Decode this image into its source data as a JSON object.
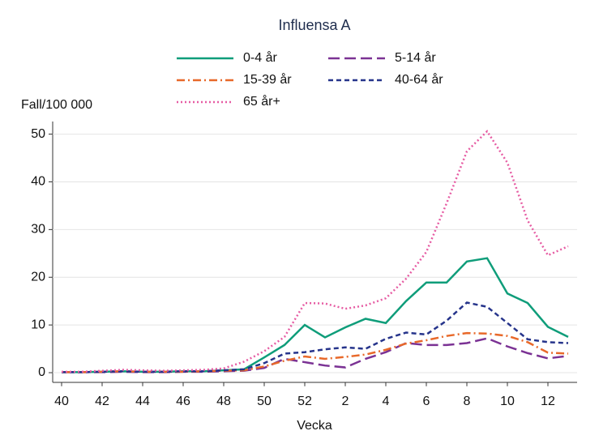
{
  "chart_data": {
    "type": "line",
    "title": "Influensa A",
    "y_label": "Fall/100 000",
    "x_label": "Vecka",
    "categories": [
      "40",
      null,
      "42",
      null,
      "44",
      null,
      "46",
      null,
      "48",
      null,
      "50",
      null,
      "52",
      null,
      "2",
      null,
      "4",
      null,
      "6",
      null,
      "8",
      null,
      "10",
      null,
      "12",
      null
    ],
    "ylim": [
      -2,
      52
    ],
    "yticks": [
      0,
      10,
      20,
      30,
      40,
      50
    ],
    "grid": true,
    "series": [
      {
        "name": "0-4 år",
        "color": "#0f9d7a",
        "dash": "solid",
        "values": [
          0.1,
          0.1,
          0.2,
          0.3,
          0.2,
          0.2,
          0.3,
          0.3,
          0.5,
          0.7,
          3.2,
          5.8,
          10.0,
          7.4,
          9.5,
          11.3,
          10.4,
          15.0,
          18.9,
          18.9,
          23.3,
          24.0,
          16.6,
          14.6,
          9.6,
          7.5
        ]
      },
      {
        "name": "5-14 år",
        "color": "#7b3294",
        "dash": "longdash",
        "values": [
          0.1,
          0.1,
          0.1,
          0.2,
          0.1,
          0.1,
          0.2,
          0.2,
          0.3,
          0.4,
          1.0,
          2.9,
          2.2,
          1.5,
          1.1,
          2.9,
          4.3,
          6.2,
          5.8,
          5.8,
          6.2,
          7.2,
          5.5,
          4.1,
          3.0,
          3.5
        ]
      },
      {
        "name": "15-39 år",
        "color": "#e8692a",
        "dash": "dashdot",
        "values": [
          0.1,
          0.1,
          0.2,
          0.3,
          0.2,
          0.2,
          0.2,
          0.3,
          0.4,
          0.5,
          1.3,
          2.5,
          3.4,
          2.9,
          3.3,
          3.8,
          4.8,
          6.1,
          6.8,
          7.7,
          8.3,
          8.2,
          7.7,
          6.4,
          4.2,
          4.0
        ]
      },
      {
        "name": "40-64 år",
        "color": "#26348b",
        "dash": "dash",
        "values": [
          0.1,
          0.1,
          0.2,
          0.3,
          0.2,
          0.2,
          0.3,
          0.3,
          0.5,
          0.7,
          2.0,
          4.0,
          4.3,
          4.9,
          5.3,
          5.0,
          7.1,
          8.4,
          8.0,
          10.9,
          14.7,
          13.8,
          10.4,
          7.0,
          6.4,
          6.2
        ]
      },
      {
        "name": "65 år+",
        "color": "#e65ca3",
        "dash": "dot",
        "values": [
          0.2,
          0.2,
          0.4,
          0.6,
          0.5,
          0.4,
          0.5,
          0.6,
          0.9,
          2.3,
          4.5,
          7.5,
          14.6,
          14.5,
          13.4,
          14.1,
          15.6,
          19.7,
          25.3,
          35.5,
          46.4,
          50.6,
          44.0,
          31.9,
          24.6,
          26.5
        ]
      }
    ]
  }
}
